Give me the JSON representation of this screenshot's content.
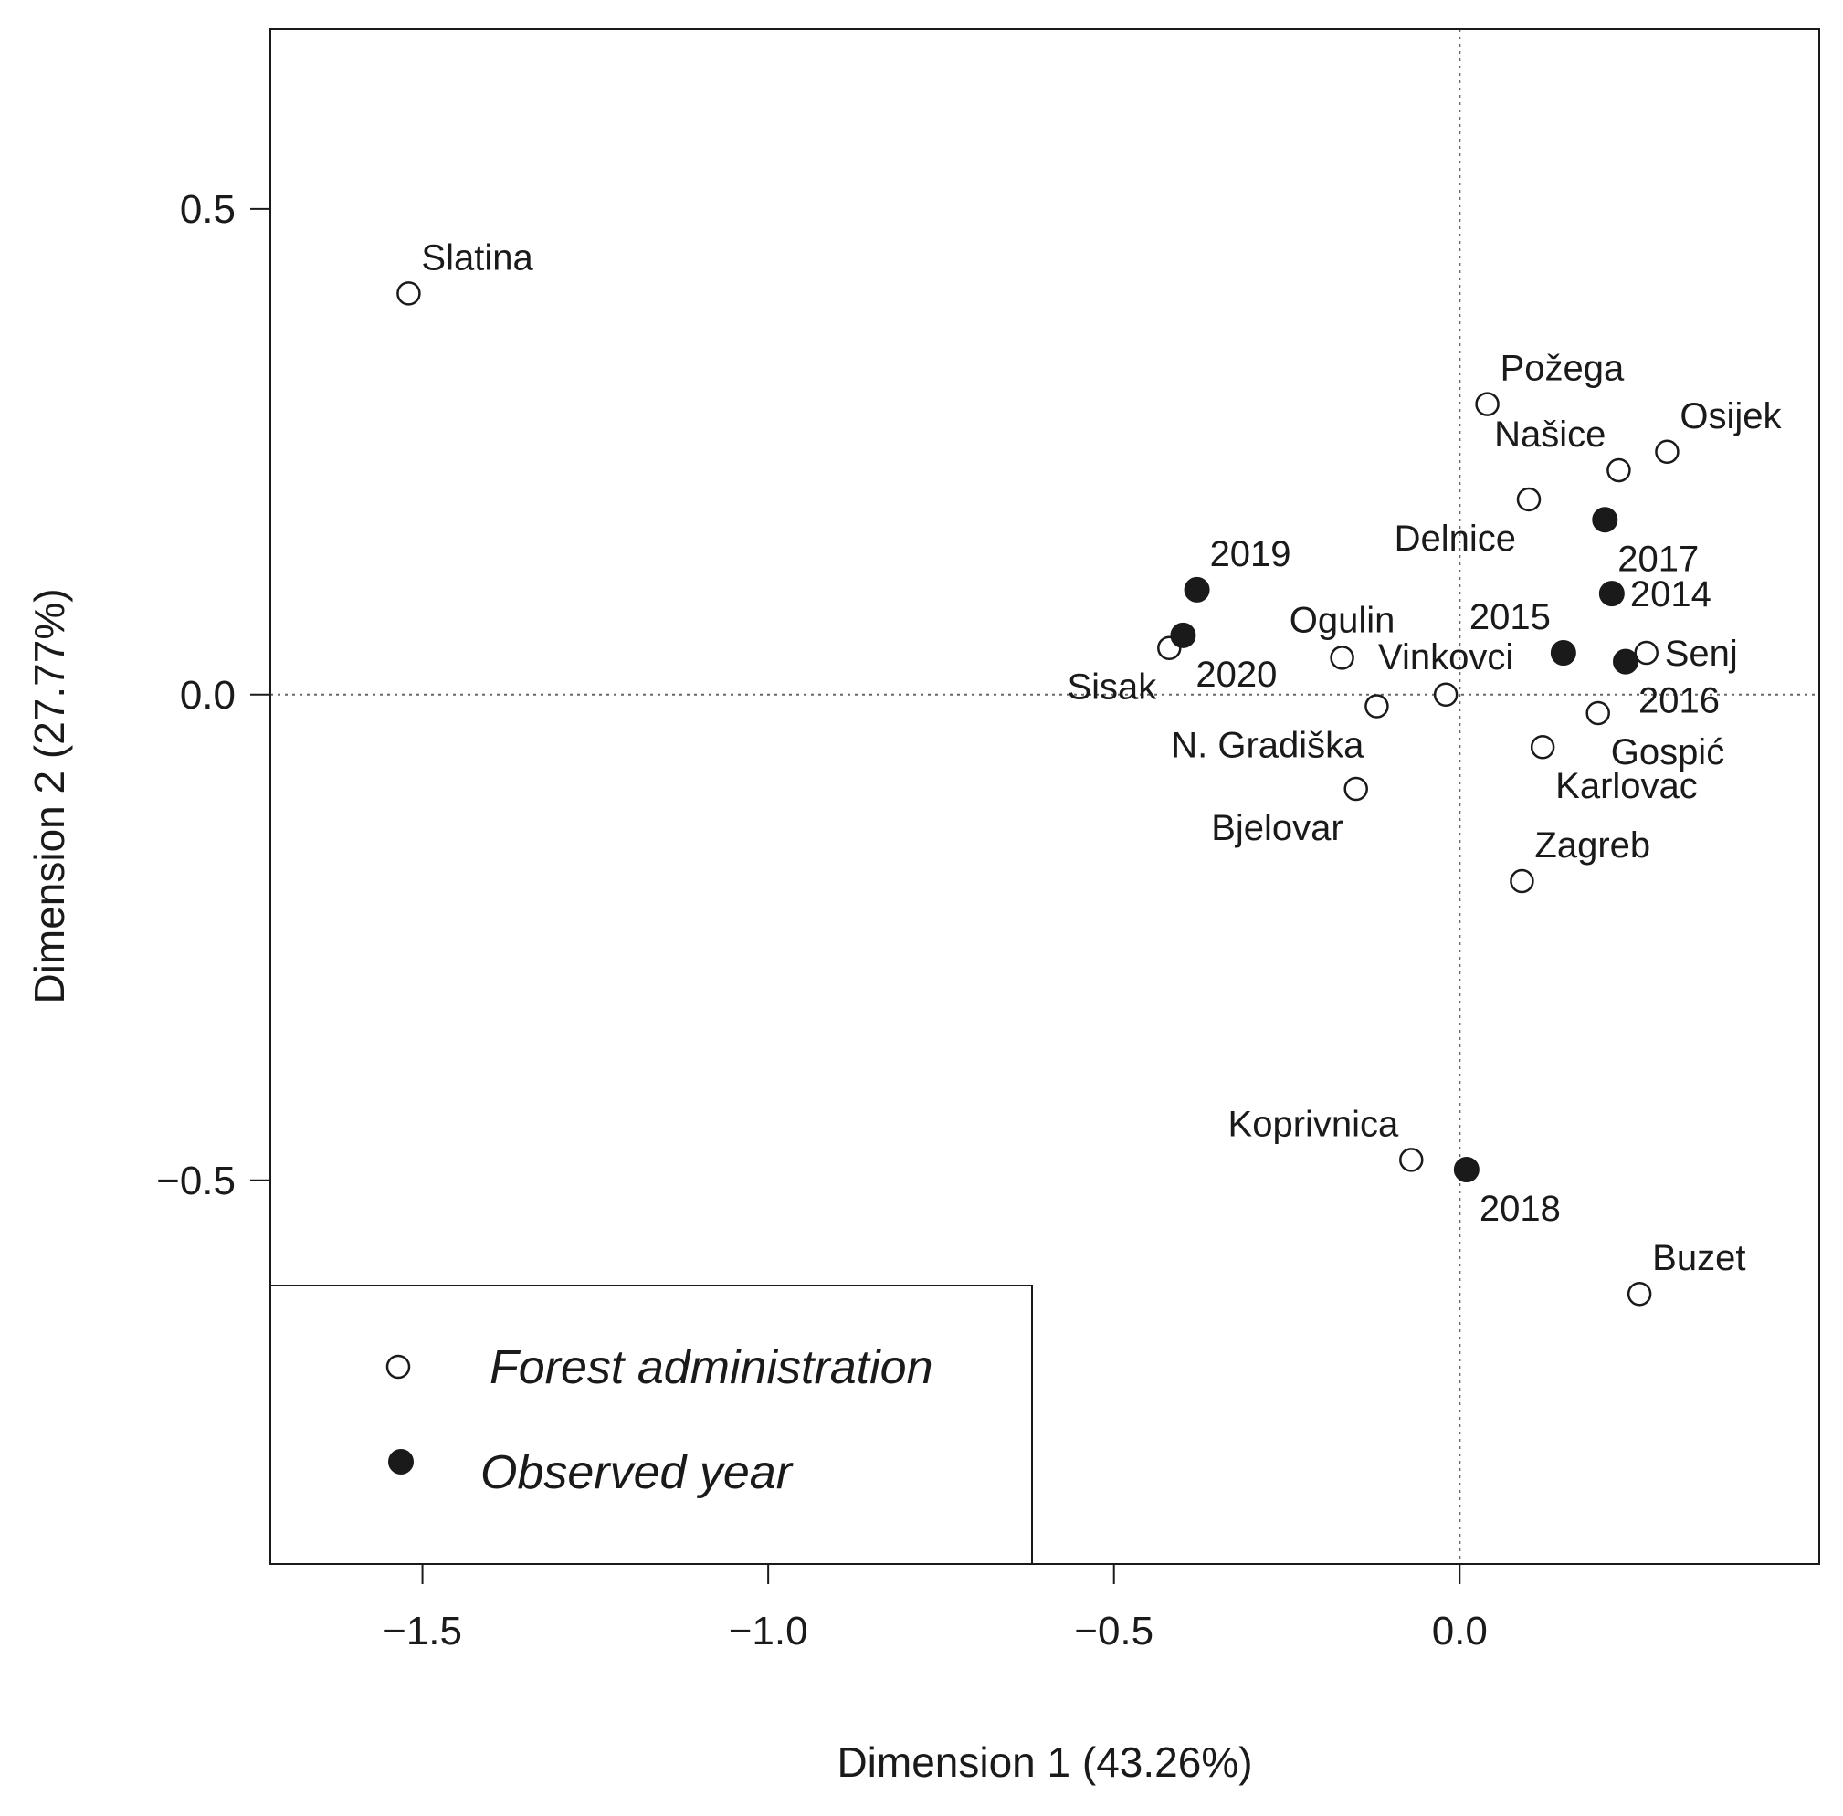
{
  "chart_data": {
    "type": "scatter",
    "title": "",
    "xlabel": "Dimension 1 (43.26%)",
    "ylabel": "Dimension 2 (27.77%)",
    "xlim": [
      -1.72,
      0.52
    ],
    "ylim": [
      -0.895,
      0.685
    ],
    "xticks": [
      -1.5,
      -1.0,
      -0.5,
      0.0
    ],
    "xtick_labels": [
      "−1.5",
      "−1.0",
      "−0.5",
      "0.0"
    ],
    "yticks": [
      0.5,
      0.0,
      -0.5
    ],
    "ytick_labels": [
      "0.5",
      "0.0",
      "−0.5"
    ],
    "reference_lines": {
      "x": 0,
      "y": 0,
      "style": "dotted"
    },
    "grid": false,
    "legend": {
      "position": "bottom-left",
      "entries": [
        {
          "label": "Forest administration",
          "marker": "open-circle"
        },
        {
          "label": "Observed year",
          "marker": "filled-circle"
        }
      ]
    },
    "series": [
      {
        "name": "Forest administration",
        "marker": "open-circle",
        "points": [
          {
            "label": "Slatina",
            "x": -1.52,
            "y": 0.413,
            "label_pos": "upper-right"
          },
          {
            "label": "Požega",
            "x": 0.04,
            "y": 0.299,
            "label_pos": "upper-right"
          },
          {
            "label": "Osijek",
            "x": 0.3,
            "y": 0.25,
            "label_pos": "upper-right"
          },
          {
            "label": "Našice",
            "x": 0.23,
            "y": 0.231,
            "label_pos": "upper-left"
          },
          {
            "label": "Delnice",
            "x": 0.1,
            "y": 0.201,
            "label_pos": "lower-left"
          },
          {
            "label": "Ogulin",
            "x": -0.17,
            "y": 0.038,
            "label_pos": "upper"
          },
          {
            "label": "Sisak",
            "x": -0.42,
            "y": 0.048,
            "label_pos": "lower-left"
          },
          {
            "label": "Vinkovci",
            "x": -0.02,
            "y": 0.0,
            "label_pos": "upper"
          },
          {
            "label": "Senj",
            "x": 0.27,
            "y": 0.043,
            "label_pos": "right"
          },
          {
            "label": "N. Gradiška",
            "x": -0.12,
            "y": -0.012,
            "label_pos": "lower-left"
          },
          {
            "label": "Gospić",
            "x": 0.2,
            "y": -0.019,
            "label_pos": "lower-right"
          },
          {
            "label": "Karlovac",
            "x": 0.12,
            "y": -0.054,
            "label_pos": "lower-right"
          },
          {
            "label": "Bjelovar",
            "x": -0.15,
            "y": -0.097,
            "label_pos": "lower-left"
          },
          {
            "label": "Zagreb",
            "x": 0.09,
            "y": -0.192,
            "label_pos": "upper-right"
          },
          {
            "label": "Koprivnica",
            "x": -0.07,
            "y": -0.479,
            "label_pos": "upper-left"
          },
          {
            "label": "Buzet",
            "x": 0.26,
            "y": -0.617,
            "label_pos": "upper-right"
          }
        ]
      },
      {
        "name": "Observed year",
        "marker": "filled-circle",
        "points": [
          {
            "label": "2019",
            "x": -0.38,
            "y": 0.108,
            "label_pos": "upper-right"
          },
          {
            "label": "2020",
            "x": -0.4,
            "y": 0.061,
            "label_pos": "lower-right"
          },
          {
            "label": "2017",
            "x": 0.21,
            "y": 0.18,
            "label_pos": "lower-right"
          },
          {
            "label": "2014",
            "x": 0.22,
            "y": 0.104,
            "label_pos": "right"
          },
          {
            "label": "2015",
            "x": 0.15,
            "y": 0.043,
            "label_pos": "upper-left"
          },
          {
            "label": "2016",
            "x": 0.24,
            "y": 0.034,
            "label_pos": "lower-right"
          },
          {
            "label": "2018",
            "x": 0.01,
            "y": -0.489,
            "label_pos": "lower-right"
          }
        ]
      }
    ]
  }
}
